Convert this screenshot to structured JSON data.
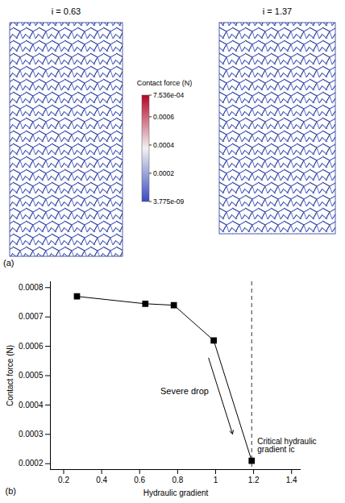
{
  "panel_a": {
    "label": "(a)",
    "images": [
      {
        "title": "i = 0.63"
      },
      {
        "title": "i = 1.37"
      }
    ],
    "colorbar": {
      "label": "Contact force (N)",
      "range": [
        3.775e-09,
        0.0007536
      ],
      "ticks": [
        {
          "value": 0.0007536,
          "label": "7.536e-04"
        },
        0.0006,
        0.0004,
        0.0002,
        {
          "value": 3.775e-09,
          "label": "3.775e-09"
        }
      ],
      "colors": [
        "#3b4cc0",
        "#f2f2f2",
        "#b40426"
      ]
    }
  },
  "chart_data": {
    "type": "line",
    "panel_label": "(b)",
    "x": [
      0.27,
      0.63,
      0.78,
      0.99,
      1.19
    ],
    "values": [
      0.00077,
      0.000745,
      0.00074,
      0.00062,
      0.00021
    ],
    "color": "#000000",
    "marker": "square",
    "xlabel": "Hydraulic gradient",
    "ylabel": "Contact force (N)",
    "xlim": [
      0.13,
      1.45
    ],
    "xticks": [
      0.2,
      0.4,
      0.6,
      0.8,
      1.0,
      1.2,
      1.4
    ],
    "ylim": [
      0.00018,
      0.00082
    ],
    "yticks": [
      0.0002,
      0.0003,
      0.0004,
      0.0005,
      0.0006,
      0.0007,
      0.0008
    ],
    "annotations": [
      {
        "text": "Severe drop"
      }
    ],
    "reference_line": {
      "x": 1.19,
      "label": "Critical hydraulic gradient ic",
      "line_style": "dashed"
    }
  }
}
